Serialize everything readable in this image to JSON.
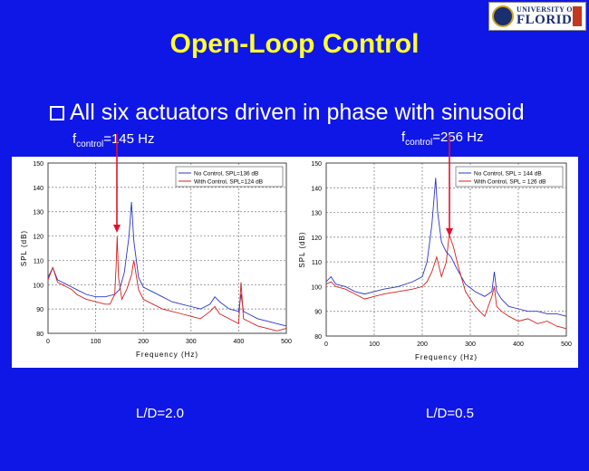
{
  "header": {
    "logo_text_top": "UNIVERSITY OF",
    "logo_text_main": "FLORIDA",
    "title": "Open-Loop Control"
  },
  "bullet": "All six actuators driven in phase with sinusoid",
  "annotations": [
    {
      "prefix": "f",
      "subscript": "control",
      "value": "=145 Hz"
    },
    {
      "prefix": "f",
      "subscript": "control",
      "value": "=256 Hz"
    }
  ],
  "captions": [
    "L/D=2.0",
    "L/D=0.5"
  ],
  "colors": {
    "background": "#0f17e6",
    "title": "#ffff33",
    "no_control": "#2b35c9",
    "with_control": "#d81e1e",
    "arrow": "#e8102a"
  },
  "chart_data": [
    {
      "type": "line",
      "xlabel": "Frequency (Hz)",
      "ylabel": "SPL (dB)",
      "xlim": [
        0,
        500
      ],
      "ylim": [
        80,
        150
      ],
      "xticks": [
        0,
        100,
        200,
        300,
        400,
        500
      ],
      "yticks": [
        80,
        90,
        100,
        110,
        120,
        130,
        140,
        150
      ],
      "grid": true,
      "legend_position": "top-right",
      "arrow_at": 145,
      "series": [
        {
          "name": "No Control, SPL=136 dB",
          "x": [
            0,
            10,
            20,
            30,
            40,
            50,
            60,
            80,
            100,
            120,
            140,
            150,
            160,
            170,
            175,
            180,
            190,
            200,
            220,
            240,
            260,
            280,
            300,
            320,
            340,
            350,
            360,
            380,
            400,
            405,
            410,
            420,
            440,
            460,
            480,
            500
          ],
          "y": [
            103,
            107,
            102,
            101,
            100,
            99,
            98,
            96,
            95,
            95,
            96,
            98,
            105,
            120,
            134,
            118,
            103,
            99,
            97,
            95,
            93,
            92,
            91,
            90,
            92,
            95,
            93,
            90,
            89,
            96,
            89,
            88,
            86,
            85,
            84,
            83
          ]
        },
        {
          "name": "With Control, SPL=124 dB",
          "x": [
            0,
            10,
            20,
            30,
            40,
            50,
            60,
            80,
            100,
            120,
            130,
            140,
            143,
            145,
            148,
            155,
            165,
            175,
            180,
            190,
            200,
            220,
            240,
            260,
            280,
            300,
            320,
            340,
            350,
            360,
            380,
            400,
            405,
            410,
            420,
            440,
            460,
            480,
            500
          ],
          "y": [
            102,
            107,
            101,
            100,
            99,
            98,
            96,
            94,
            93,
            92,
            92,
            96,
            108,
            120,
            103,
            94,
            98,
            104,
            110,
            98,
            94,
            92,
            90,
            89,
            88,
            87,
            86,
            89,
            91,
            88,
            86,
            84,
            101,
            86,
            85,
            83,
            82,
            81,
            82
          ]
        }
      ]
    },
    {
      "type": "line",
      "xlabel": "Frequency (Hz)",
      "ylabel": "SPL (dB)",
      "xlim": [
        0,
        500
      ],
      "ylim": [
        80,
        150
      ],
      "xticks": [
        0,
        100,
        200,
        300,
        400,
        500
      ],
      "yticks": [
        80,
        90,
        100,
        110,
        120,
        130,
        140,
        150
      ],
      "grid": true,
      "legend_position": "top-right",
      "arrow_at": 256,
      "series": [
        {
          "name": "No Control, SPL = 144 dB",
          "x": [
            0,
            10,
            20,
            40,
            60,
            80,
            100,
            120,
            150,
            180,
            200,
            210,
            220,
            228,
            232,
            240,
            250,
            260,
            270,
            290,
            310,
            330,
            345,
            350,
            355,
            365,
            380,
            400,
            420,
            440,
            460,
            480,
            500
          ],
          "y": [
            102,
            104,
            101,
            100,
            98,
            97,
            98,
            99,
            100,
            102,
            104,
            110,
            125,
            144,
            130,
            118,
            114,
            112,
            108,
            101,
            98,
            96,
            98,
            106,
            98,
            95,
            92,
            91,
            90,
            90,
            89,
            89,
            88
          ]
        },
        {
          "name": "With Control, SPL = 126 dB",
          "x": [
            0,
            10,
            20,
            40,
            60,
            80,
            100,
            120,
            150,
            180,
            200,
            210,
            220,
            230,
            240,
            250,
            256,
            265,
            275,
            290,
            310,
            330,
            345,
            350,
            355,
            365,
            380,
            400,
            420,
            440,
            460,
            480,
            500
          ],
          "y": [
            101,
            102,
            100,
            99,
            97,
            95,
            96,
            97,
            98,
            99,
            100,
            102,
            106,
            112,
            104,
            110,
            121,
            116,
            108,
            98,
            92,
            88,
            96,
            100,
            92,
            90,
            88,
            86,
            87,
            85,
            86,
            84,
            83
          ]
        }
      ]
    }
  ]
}
